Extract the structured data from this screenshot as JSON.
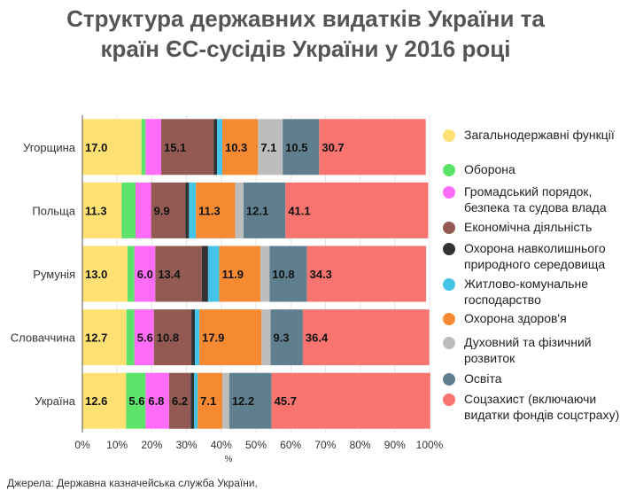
{
  "title_line1": "Структура державних видатків України та",
  "title_line2": "країн ЄС-сусідів України у 2016 році",
  "source": "Джерела: Державна казначейська служба України,",
  "chart_data": {
    "type": "bar",
    "orientation": "horizontal",
    "stacked": true,
    "title": "Структура державних видатків України та країн ЄС-сусідів України у 2016 році",
    "categories": [
      "Угорщина",
      "Польща",
      "Румунія",
      "Словаччина",
      "Україна"
    ],
    "xlabel": "%",
    "xlim": [
      0,
      100
    ],
    "x_ticks": [
      "0%",
      "10%",
      "20%",
      "30%",
      "40%",
      "50%",
      "60%",
      "70%",
      "80%",
      "90%",
      "100%"
    ],
    "grid": true,
    "legend_position": "right",
    "series": [
      {
        "name": "Загальнодержавні функції",
        "color": "#ffe073",
        "values": [
          17.0,
          11.3,
          13.0,
          12.7,
          12.6
        ],
        "labels": [
          "17.0",
          "11.3",
          "13.0",
          "12.7",
          "12.6"
        ]
      },
      {
        "name": "Оборона",
        "color": "#5de36a",
        "values": [
          1.2,
          4.0,
          2.0,
          2.3,
          5.6
        ],
        "labels": [
          "",
          "",
          "",
          "",
          "5.6"
        ]
      },
      {
        "name": "Громадський порядок, безпека та судова влада",
        "color": "#ff6cf7",
        "values": [
          4.5,
          4.5,
          6.0,
          5.6,
          6.8
        ],
        "labels": [
          "",
          "",
          "6.0",
          "5.6",
          "6.8"
        ]
      },
      {
        "name": "Економічна діяльність",
        "color": "#935a54",
        "values": [
          15.1,
          9.9,
          13.4,
          10.8,
          6.2
        ],
        "labels": [
          "15.1",
          "9.9",
          "13.4",
          "10.8",
          "6.2"
        ]
      },
      {
        "name": "Охорона навколишнього природного середовища",
        "color": "#333333",
        "values": [
          1.0,
          1.0,
          1.8,
          1.0,
          1.0
        ],
        "labels": [
          "",
          "",
          "",
          "",
          ""
        ]
      },
      {
        "name": "Житлово-комунальне господарство",
        "color": "#45c4e9",
        "values": [
          1.5,
          2.0,
          3.2,
          1.3,
          1.0
        ],
        "labels": [
          "",
          "",
          "",
          "",
          ""
        ]
      },
      {
        "name": "Охорона здоров'я",
        "color": "#f58a32",
        "values": [
          10.3,
          11.3,
          11.9,
          17.9,
          7.1
        ],
        "labels": [
          "10.3",
          "11.3",
          "11.9",
          "17.9",
          "7.1"
        ]
      },
      {
        "name": "Духовний та фізичний розвиток",
        "color": "#bdbdbd",
        "values": [
          7.1,
          2.4,
          2.6,
          2.6,
          2.0
        ],
        "labels": [
          "7.1",
          "",
          "",
          "",
          ""
        ]
      },
      {
        "name": "Освіта",
        "color": "#5f7f8f",
        "values": [
          10.5,
          12.1,
          10.8,
          9.3,
          12.2
        ],
        "labels": [
          "10.5",
          "12.1",
          "10.8",
          "9.3",
          "12.2"
        ]
      },
      {
        "name": "Соцзахист (включаючи видатки фондів соцстраху)",
        "color": "#f77470",
        "values": [
          30.7,
          41.1,
          34.3,
          36.4,
          45.7
        ],
        "labels": [
          "30.7",
          "41.1",
          "34.3",
          "36.4",
          "45.7"
        ]
      }
    ]
  }
}
